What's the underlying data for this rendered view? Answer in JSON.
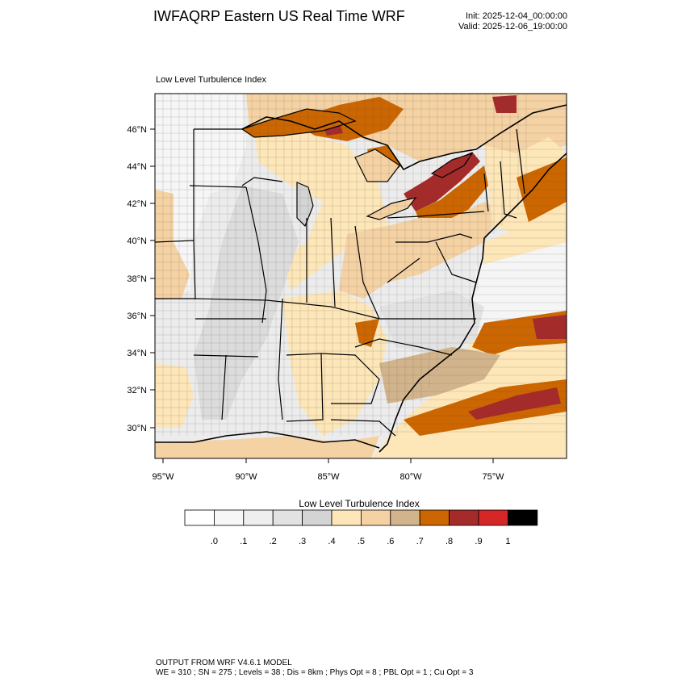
{
  "header": {
    "title": "IWFAQRP Eastern US Real Time WRF",
    "init": "Init: 2025-12-04_00:00:00",
    "valid": "Valid: 2025-12-06_19:00:00"
  },
  "map": {
    "field_label": "Low Level Turbulence Index",
    "lat_labels": [
      "46°N",
      "44°N",
      "42°N",
      "40°N",
      "38°N",
      "36°N",
      "34°N",
      "32°N",
      "30°N"
    ],
    "lon_labels": [
      "95°W",
      "90°W",
      "85°W",
      "80°W",
      "75°W"
    ]
  },
  "colorbar": {
    "title": "Low Level Turbulence Index",
    "labels": [
      ".0",
      ".1",
      ".2",
      ".3",
      ".4",
      ".5",
      ".6",
      ".7",
      ".8",
      ".9",
      "1"
    ],
    "colors": [
      "#ffffff",
      "#f7f7f7",
      "#eeeeee",
      "#e2e2e2",
      "#d4d4d4",
      "#fde6b8",
      "#f5d2a3",
      "#d2b48c",
      "#cc6600",
      "#a52a2a",
      "#d62728",
      "#000000"
    ]
  },
  "footer": {
    "line1": "OUTPUT FROM WRF V4.6.1 MODEL",
    "line2": "WE = 310 ; SN = 275 ; Levels = 38 ; Dis = 8km ; Phys Opt = 8 ; PBL Opt = 1 ; Cu Opt = 3"
  }
}
